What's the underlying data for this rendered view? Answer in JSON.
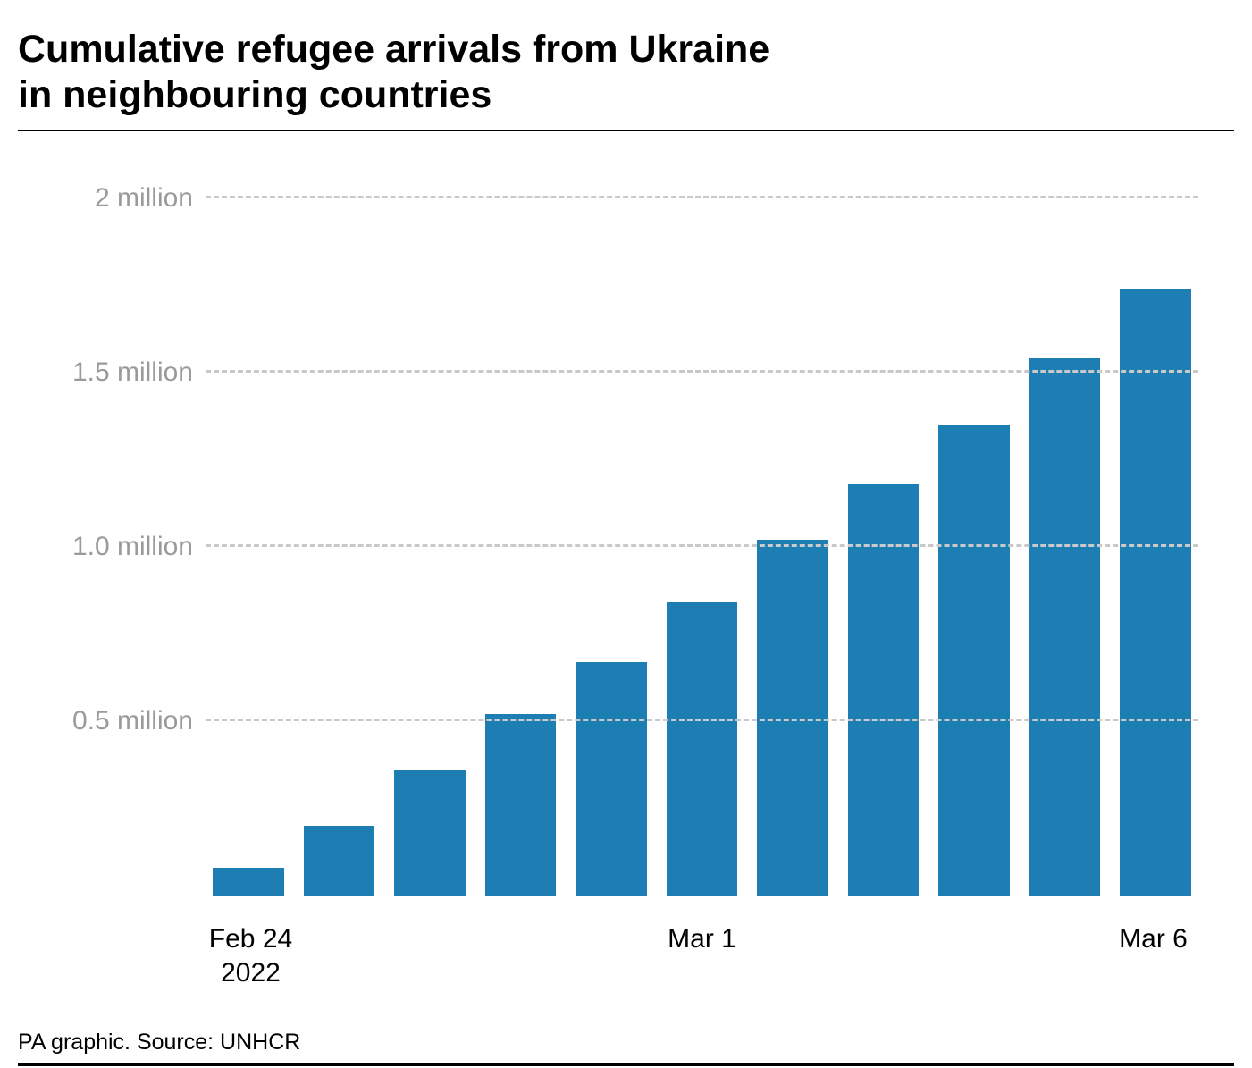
{
  "title_line1": "Cumulative refugee arrivals from Ukraine",
  "title_line2": "in neighbouring countries",
  "footer": "PA graphic. Source: UNHCR",
  "chart": {
    "type": "bar",
    "bar_color": "#1d7eb3",
    "background_color": "#ffffff",
    "grid_color": "#c9c9c9",
    "grid_dash": "dashed",
    "title_fontsize": 43,
    "axis_label_fontsize": 30,
    "axis_label_color": "#9a9a9a",
    "x_label_color": "#000000",
    "ylim": [
      0,
      2.1
    ],
    "y_ticks": [
      {
        "value": 0.5,
        "label": "0.5 million"
      },
      {
        "value": 1.0,
        "label": "1.0 million"
      },
      {
        "value": 1.5,
        "label": "1.5 million"
      },
      {
        "value": 2.0,
        "label": "2 million"
      }
    ],
    "values": [
      0.08,
      0.2,
      0.36,
      0.52,
      0.67,
      0.84,
      1.02,
      1.18,
      1.35,
      1.54,
      1.74
    ],
    "bar_gap_ratio": 0.22,
    "x_labels": [
      {
        "index": 0,
        "label_line1": "Feb 24",
        "label_line2": "2022"
      },
      {
        "index": 5,
        "label_line1": "Mar 1",
        "label_line2": ""
      },
      {
        "index": 10,
        "label_line1": "Mar 6",
        "label_line2": ""
      }
    ]
  }
}
